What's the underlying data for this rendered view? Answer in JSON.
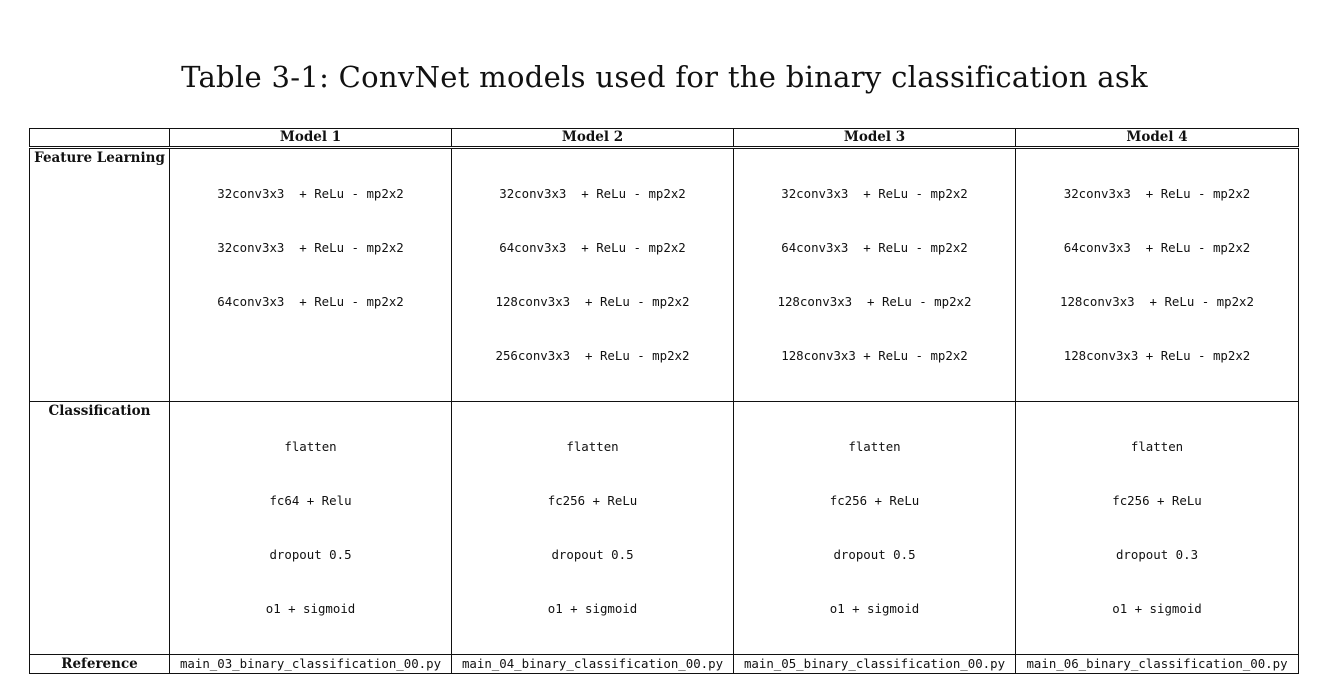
{
  "caption": "Table 3-1: ConvNet models used for the binary classification ask",
  "table": {
    "headers": [
      "",
      "Model 1",
      "Model 2",
      "Model 3",
      "Model 4"
    ],
    "rows": {
      "feature_learning": {
        "label": "Feature Learning",
        "cells": [
          [
            "32conv3x3  + ReLu - mp2x2",
            "32conv3x3  + ReLu - mp2x2",
            "64conv3x3  + ReLu - mp2x2"
          ],
          [
            "32conv3x3  + ReLu - mp2x2",
            "64conv3x3  + ReLu - mp2x2",
            "128conv3x3  + ReLu - mp2x2",
            "256conv3x3  + ReLu - mp2x2"
          ],
          [
            "32conv3x3  + ReLu - mp2x2",
            "64conv3x3  + ReLu - mp2x2",
            "128conv3x3  + ReLu - mp2x2",
            "128conv3x3 + ReLu - mp2x2"
          ],
          [
            "32conv3x3  + ReLu - mp2x2",
            "64conv3x3  + ReLu - mp2x2",
            "128conv3x3  + ReLu - mp2x2",
            "128conv3x3 + ReLu - mp2x2"
          ]
        ]
      },
      "classification": {
        "label": "Classification",
        "cells": [
          [
            "flatten",
            "fc64 + Relu",
            "dropout 0.5",
            "o1 + sigmoid"
          ],
          [
            "flatten",
            "fc256 + ReLu",
            "dropout 0.5",
            "o1 + sigmoid"
          ],
          [
            "flatten",
            "fc256 + ReLu",
            "dropout 0.5",
            "o1 + sigmoid"
          ],
          [
            "flatten",
            "fc256 + ReLu",
            "dropout 0.3",
            "o1 + sigmoid"
          ]
        ]
      },
      "reference": {
        "label": "Reference",
        "cells": [
          "main_03_binary_classification_00.py",
          "main_04_binary_classification_00.py",
          "main_05_binary_classification_00.py",
          "main_06_binary_classification_00.py"
        ]
      }
    }
  }
}
